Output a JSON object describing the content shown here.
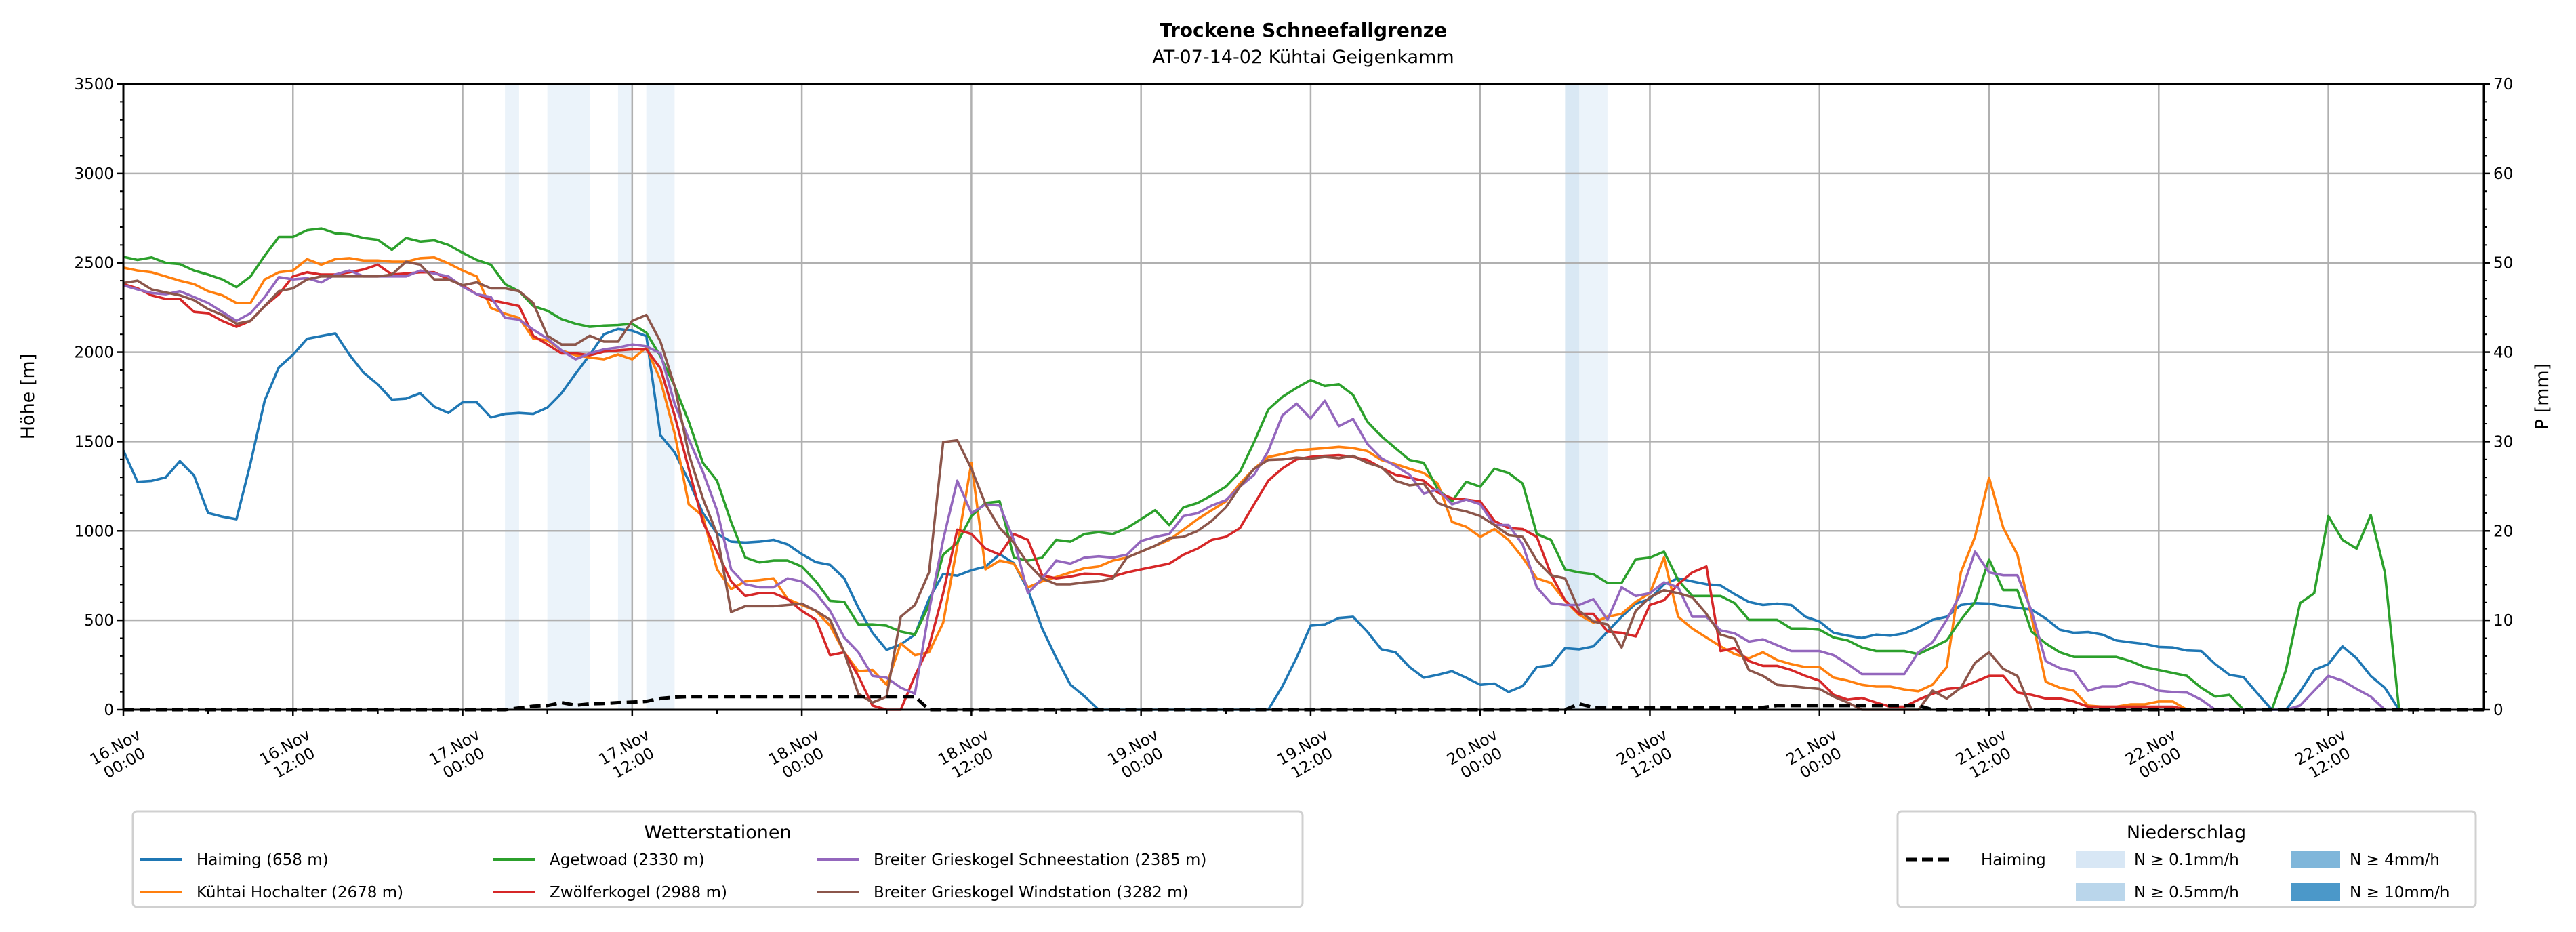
{
  "chart_data": {
    "type": "line",
    "title": "Trockene Schneefallgrenze",
    "subtitle": "AT-07-14-02 Kühtai Geigenkamm",
    "ylabel": "Höhe [m]",
    "ylabel_right": "P [mm]",
    "xlim_hours": [
      0,
      167
    ],
    "ylim": [
      0,
      3500
    ],
    "ylim_right": [
      0,
      70
    ],
    "yticks": [
      0,
      500,
      1000,
      1500,
      2000,
      2500,
      3000,
      3500
    ],
    "yticks_right": [
      0,
      10,
      20,
      30,
      40,
      50,
      60,
      70
    ],
    "grid": true,
    "x_unit": "hours since 16.Nov 00:00",
    "xticks": [
      {
        "hour": 0,
        "line1": "16.Nov",
        "line2": "00:00"
      },
      {
        "hour": 12,
        "line1": "16.Nov",
        "line2": "12:00"
      },
      {
        "hour": 24,
        "line1": "17.Nov",
        "line2": "00:00"
      },
      {
        "hour": 36,
        "line1": "17.Nov",
        "line2": "12:00"
      },
      {
        "hour": 48,
        "line1": "18.Nov",
        "line2": "00:00"
      },
      {
        "hour": 60,
        "line1": "18.Nov",
        "line2": "12:00"
      },
      {
        "hour": 72,
        "line1": "19.Nov",
        "line2": "00:00"
      },
      {
        "hour": 84,
        "line1": "19.Nov",
        "line2": "12:00"
      },
      {
        "hour": 96,
        "line1": "20.Nov",
        "line2": "00:00"
      },
      {
        "hour": 108,
        "line1": "20.Nov",
        "line2": "12:00"
      },
      {
        "hour": 120,
        "line1": "21.Nov",
        "line2": "00:00"
      },
      {
        "hour": 132,
        "line1": "21.Nov",
        "line2": "12:00"
      },
      {
        "hour": 144,
        "line1": "22.Nov",
        "line2": "00:00"
      },
      {
        "hour": 156,
        "line1": "22.Nov",
        "line2": "12:00"
      }
    ],
    "series": [
      {
        "name": "Haiming (658 m)",
        "color": "#1f77b4",
        "start_hour": 0,
        "values": [
          1450,
          1275,
          1280,
          1300,
          1390,
          1310,
          1100,
          1080,
          1065,
          1380,
          1730,
          1915,
          1985,
          2075,
          2090,
          2105,
          1985,
          1885,
          1820,
          1735,
          1740,
          1770,
          1695,
          1660,
          1720,
          1720,
          1635,
          1655,
          1660,
          1655,
          1690,
          1770,
          1880,
          1985,
          2100,
          2130,
          2120,
          2090,
          1535,
          1440,
          1280,
          1100,
          985,
          940,
          935,
          940,
          950,
          925,
          870,
          825,
          810,
          735,
          570,
          430,
          335,
          365,
          420,
          620,
          760,
          750,
          780,
          800,
          870,
          820,
          670,
          455,
          290,
          140,
          75,
          0,
          0,
          0,
          0,
          0,
          0,
          0,
          0,
          0,
          0,
          0,
          0,
          0,
          130,
          290,
          470,
          477,
          513,
          520,
          437,
          338,
          321,
          238,
          179,
          195,
          215,
          179,
          139,
          146,
          99,
          132,
          238,
          248,
          344,
          338,
          354,
          437,
          520,
          593,
          619,
          702,
          735,
          718,
          702,
          695,
          646,
          603,
          586,
          593,
          586,
          520,
          493,
          430,
          414,
          401,
          420,
          414,
          427,
          460,
          503,
          520,
          586,
          596,
          593,
          580,
          570,
          560,
          510,
          447,
          430,
          434,
          420,
          387,
          377,
          368,
          351,
          348,
          331,
          328,
          255,
          195,
          182,
          89,
          0,
          0,
          100,
          222,
          255,
          354,
          288,
          189,
          122,
          0
        ]
      },
      {
        "name": "Kühtai Hochalter (2678 m)",
        "color": "#ff7f0e",
        "start_hour": 0,
        "values": [
          2473,
          2457,
          2447,
          2424,
          2400,
          2381,
          2341,
          2318,
          2275,
          2275,
          2407,
          2447,
          2457,
          2520,
          2490,
          2520,
          2526,
          2513,
          2513,
          2506,
          2506,
          2526,
          2530,
          2497,
          2457,
          2424,
          2248,
          2215,
          2192,
          2076,
          2066,
          2010,
          1983,
          1970,
          1960,
          1987,
          1960,
          2026,
          1844,
          1546,
          1149,
          1083,
          785,
          675,
          718,
          725,
          735,
          619,
          586,
          553,
          470,
          321,
          215,
          222,
          139,
          371,
          305,
          321,
          487,
          917,
          1381,
          785,
          834,
          817,
          685,
          718,
          742,
          768,
          791,
          801,
          834,
          851,
          884,
          917,
          950,
          1007,
          1066,
          1116,
          1165,
          1265,
          1348,
          1414,
          1430,
          1450,
          1457,
          1463,
          1470,
          1463,
          1447,
          1397,
          1374,
          1348,
          1324,
          1265,
          1050,
          1023,
          967,
          1010,
          950,
          851,
          735,
          709,
          609,
          530,
          487,
          520,
          536,
          603,
          652,
          851,
          520,
          454,
          404,
          354,
          311,
          288,
          321,
          278,
          255,
          238,
          238,
          179,
          162,
          139,
          129,
          129,
          113,
          103,
          140,
          238,
          768,
          967,
          1298,
          1017,
          868,
          520,
          156,
          123,
          106,
          23,
          17,
          17,
          30,
          30,
          46,
          46,
          0
        ]
      },
      {
        "name": "Agetwoad (2330 m)",
        "color": "#2ca02c",
        "start_hour": 0,
        "values": [
          2533,
          2516,
          2530,
          2500,
          2493,
          2457,
          2434,
          2407,
          2364,
          2424,
          2540,
          2645,
          2645,
          2682,
          2692,
          2665,
          2659,
          2639,
          2629,
          2573,
          2639,
          2619,
          2626,
          2600,
          2556,
          2516,
          2490,
          2381,
          2341,
          2258,
          2232,
          2185,
          2159,
          2142,
          2149,
          2152,
          2159,
          2109,
          1977,
          1811,
          1612,
          1381,
          1281,
          1050,
          851,
          824,
          834,
          834,
          801,
          718,
          609,
          603,
          477,
          477,
          470,
          437,
          420,
          586,
          867,
          934,
          1083,
          1156,
          1165,
          851,
          834,
          851,
          950,
          940,
          983,
          993,
          983,
          1016,
          1066,
          1116,
          1033,
          1132,
          1156,
          1199,
          1248,
          1331,
          1497,
          1679,
          1750,
          1800,
          1844,
          1811,
          1821,
          1761,
          1612,
          1530,
          1463,
          1397,
          1381,
          1232,
          1165,
          1275,
          1248,
          1348,
          1324,
          1265,
          983,
          950,
          785,
          768,
          758,
          709,
          709,
          841,
          851,
          884,
          725,
          636,
          636,
          636,
          596,
          503,
          503,
          503,
          454,
          454,
          447,
          404,
          387,
          348,
          328,
          328,
          328,
          311,
          348,
          387,
          503,
          603,
          841,
          669,
          669,
          437,
          371,
          321,
          295,
          295,
          295,
          295,
          272,
          238,
          222,
          205,
          189,
          123,
          73,
          83,
          0,
          0,
          0,
          222,
          596,
          652,
          1083,
          950,
          901,
          1089,
          768,
          0
        ]
      },
      {
        "name": "Zwölferkogel (2988 m)",
        "color": "#d62728",
        "start_hour": 0,
        "values": [
          2381,
          2357,
          2318,
          2298,
          2298,
          2225,
          2218,
          2175,
          2142,
          2175,
          2258,
          2324,
          2424,
          2447,
          2434,
          2434,
          2447,
          2463,
          2490,
          2434,
          2440,
          2447,
          2447,
          2407,
          2374,
          2324,
          2291,
          2275,
          2258,
          2092,
          2043,
          1993,
          1993,
          1983,
          2003,
          2010,
          2016,
          2016,
          1910,
          1646,
          1348,
          1050,
          884,
          718,
          636,
          652,
          652,
          619,
          553,
          503,
          305,
          321,
          189,
          23,
          0,
          0,
          189,
          354,
          652,
          1007,
          983,
          901,
          867,
          983,
          950,
          752,
          735,
          745,
          761,
          758,
          745,
          768,
          785,
          801,
          817,
          867,
          901,
          950,
          967,
          1016,
          1149,
          1281,
          1350,
          1400,
          1414,
          1420,
          1424,
          1414,
          1397,
          1354,
          1314,
          1298,
          1281,
          1215,
          1182,
          1175,
          1165,
          1056,
          1016,
          1010,
          967,
          758,
          612,
          536,
          536,
          437,
          430,
          410,
          586,
          612,
          702,
          768,
          801,
          328,
          344,
          272,
          245,
          245,
          222,
          189,
          162,
          83,
          56,
          66,
          40,
          17,
          17,
          56,
          89,
          116,
          123,
          156,
          189,
          189,
          96,
          83,
          63,
          63,
          46,
          17,
          17,
          17,
          17,
          17,
          17,
          17,
          0
        ]
      },
      {
        "name": "Breiter Grieskogel Schneestation (2385 m)",
        "color": "#9467bd",
        "start_hour": 0,
        "values": [
          2374,
          2351,
          2331,
          2324,
          2341,
          2308,
          2275,
          2225,
          2175,
          2218,
          2308,
          2420,
          2407,
          2414,
          2390,
          2434,
          2457,
          2424,
          2424,
          2424,
          2424,
          2457,
          2440,
          2424,
          2367,
          2324,
          2308,
          2192,
          2182,
          2126,
          2076,
          2010,
          1960,
          1993,
          2016,
          2026,
          2043,
          2033,
          1993,
          1712,
          1513,
          1331,
          1116,
          785,
          702,
          685,
          685,
          735,
          718,
          652,
          553,
          404,
          321,
          189,
          179,
          123,
          89,
          553,
          950,
          1281,
          1099,
          1149,
          1142,
          950,
          652,
          735,
          834,
          817,
          851,
          858,
          851,
          867,
          944,
          967,
          983,
          1083,
          1099,
          1142,
          1172,
          1248,
          1314,
          1447,
          1646,
          1712,
          1629,
          1728,
          1586,
          1626,
          1487,
          1407,
          1364,
          1314,
          1209,
          1232,
          1149,
          1175,
          1149,
          1033,
          1033,
          924,
          685,
          596,
          586,
          586,
          619,
          503,
          685,
          636,
          652,
          712,
          685,
          520,
          520,
          444,
          427,
          381,
          394,
          361,
          328,
          328,
          328,
          305,
          255,
          199,
          199,
          199,
          199,
          321,
          377,
          503,
          652,
          884,
          768,
          752,
          752,
          553,
          272,
          232,
          215,
          106,
          129,
          129,
          156,
          139,
          106,
          99,
          96,
          56,
          0,
          0,
          0,
          0,
          0,
          0,
          23,
          106,
          189,
          162,
          116,
          73,
          0
        ]
      },
      {
        "name": "Breiter Grieskogel Windstation (3282 m)",
        "color": "#8c564b",
        "start_hour": 0,
        "values": [
          2387,
          2400,
          2351,
          2334,
          2318,
          2291,
          2241,
          2208,
          2159,
          2175,
          2258,
          2341,
          2357,
          2407,
          2424,
          2424,
          2424,
          2424,
          2424,
          2434,
          2506,
          2490,
          2407,
          2407,
          2374,
          2391,
          2357,
          2357,
          2341,
          2275,
          2092,
          2043,
          2043,
          2092,
          2059,
          2059,
          2175,
          2208,
          2059,
          1811,
          1430,
          1182,
          983,
          546,
          579,
          579,
          579,
          586,
          593,
          553,
          503,
          321,
          89,
          40,
          73,
          520,
          586,
          768,
          1497,
          1507,
          1348,
          1149,
          1016,
          934,
          817,
          735,
          702,
          702,
          712,
          718,
          735,
          851,
          884,
          917,
          960,
          967,
          1000,
          1056,
          1132,
          1248,
          1348,
          1397,
          1400,
          1410,
          1404,
          1414,
          1407,
          1420,
          1381,
          1357,
          1281,
          1255,
          1265,
          1156,
          1126,
          1109,
          1083,
          1033,
          977,
          967,
          834,
          752,
          735,
          553,
          493,
          477,
          348,
          553,
          629,
          669,
          652,
          629,
          536,
          420,
          397,
          222,
          189,
          139,
          132,
          123,
          116,
          73,
          40,
          0,
          0,
          0,
          0,
          0,
          106,
          63,
          123,
          262,
          321,
          228,
          189,
          0
        ]
      }
    ],
    "precip_line": {
      "name": "Haiming",
      "color": "#000000",
      "hours": [
        0,
        27,
        28,
        29,
        30,
        31,
        32,
        33,
        34,
        35,
        36,
        37,
        38,
        39,
        40,
        56,
        57,
        102,
        103,
        104,
        116,
        117,
        127,
        128,
        167
      ],
      "values_mm": [
        0,
        0,
        0.2,
        0.4,
        0.46,
        0.8,
        0.5,
        0.66,
        0.7,
        0.8,
        0.85,
        0.93,
        1.26,
        1.4,
        1.46,
        1.46,
        0,
        0,
        0.66,
        0.26,
        0.26,
        0.46,
        0.46,
        0,
        0
      ]
    },
    "precip_bands": [
      {
        "start_hour": 27,
        "end_hour": 28,
        "level": "0.1"
      },
      {
        "start_hour": 30,
        "end_hour": 33,
        "level": "0.1"
      },
      {
        "start_hour": 35,
        "end_hour": 36,
        "level": "0.1"
      },
      {
        "start_hour": 37,
        "end_hour": 39,
        "level": "0.1"
      },
      {
        "start_hour": 102,
        "end_hour": 103,
        "level": "0.5"
      },
      {
        "start_hour": 103,
        "end_hour": 105,
        "level": "0.1"
      }
    ],
    "legend_stations": {
      "title": "Wetterstationen",
      "placement": "bottom-left"
    },
    "legend_precip": {
      "title": "Niederschlag",
      "placement": "bottom-right",
      "line_label": "Haiming",
      "levels": [
        {
          "key": "0.1",
          "label": "N ≥ 0.1mm/h",
          "color": "#d8e7f5"
        },
        {
          "key": "0.5",
          "label": "N ≥ 0.5mm/h",
          "color": "#bad6eb"
        },
        {
          "key": "4",
          "label": "N ≥ 4mm/h",
          "color": "#7fb6da"
        },
        {
          "key": "10",
          "label": "N ≥ 10mm/h",
          "color": "#4b98c9"
        }
      ]
    }
  }
}
